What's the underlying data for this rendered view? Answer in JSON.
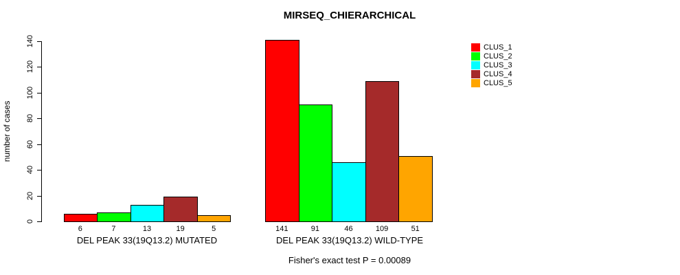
{
  "title": "MIRSEQ_CHIERARCHICAL",
  "chart_data": {
    "type": "bar",
    "title": "MIRSEQ_CHIERARCHICAL",
    "xlabel": "",
    "ylabel": "number of cases",
    "ylim": [
      0,
      140
    ],
    "yticks": [
      0,
      20,
      40,
      60,
      80,
      100,
      120,
      140
    ],
    "grid": false,
    "legend_position": "top-right",
    "clusters": [
      {
        "name": "CLUS_1",
        "color": "#FF0000"
      },
      {
        "name": "CLUS_2",
        "color": "#00FF00"
      },
      {
        "name": "CLUS_3",
        "color": "#00FFFF"
      },
      {
        "name": "CLUS_4",
        "color": "#A52A2A"
      },
      {
        "name": "CLUS_5",
        "color": "#FFA500"
      }
    ],
    "groups": [
      {
        "label": "DEL PEAK 33(19Q13.2) MUTATED",
        "values": [
          6,
          7,
          13,
          19,
          5
        ]
      },
      {
        "label": "DEL PEAK 33(19Q13.2) WILD-TYPE",
        "values": [
          141,
          91,
          46,
          109,
          51
        ]
      }
    ],
    "annotation": "Fisher's exact test P = 0.00089"
  }
}
